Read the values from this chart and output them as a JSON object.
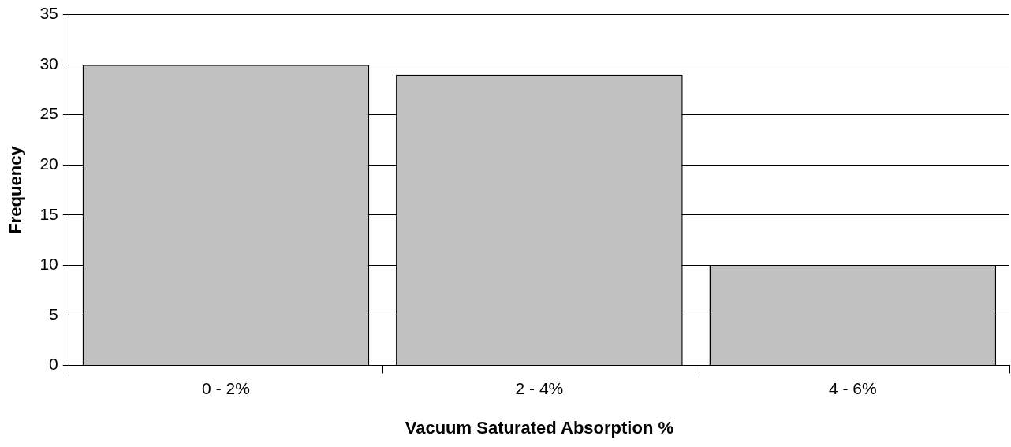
{
  "chart_data": {
    "type": "bar",
    "xlabel": "Vacuum Saturated Absorption %",
    "ylabel": "Frequency",
    "categories": [
      "0 - 2%",
      "2 - 4%",
      "4 - 6%"
    ],
    "values": [
      30,
      29,
      10
    ],
    "color": "#c0c0c0",
    "ylim": [
      0,
      35
    ],
    "yticks": [
      0,
      5,
      10,
      15,
      20,
      25,
      30,
      35
    ],
    "grid": "y"
  }
}
